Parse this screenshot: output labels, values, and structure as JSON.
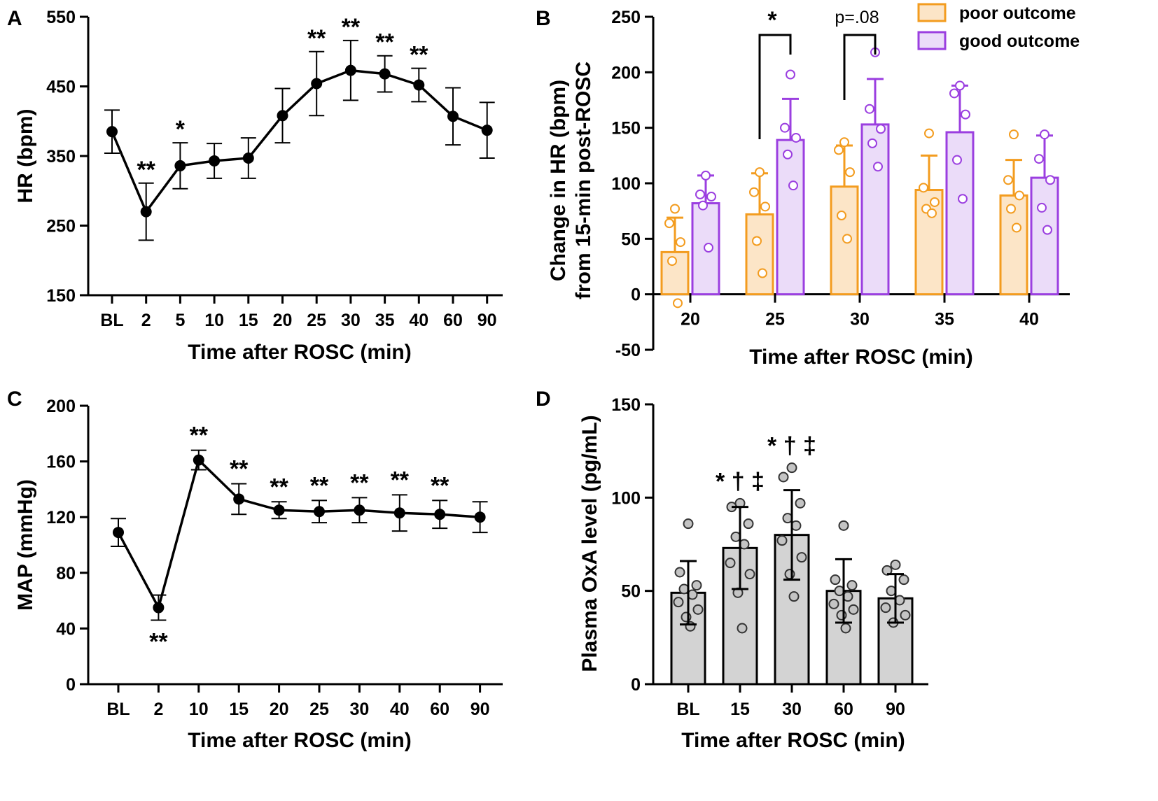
{
  "chart_data": [
    {
      "panel": "A",
      "type": "line",
      "xlabel": "Time after ROSC (min)",
      "ylabel": "HR (bpm)",
      "ylim": [
        150,
        550
      ],
      "yticks": [
        150,
        250,
        350,
        450,
        550
      ],
      "categories": [
        "BL",
        "2",
        "5",
        "10",
        "15",
        "20",
        "25",
        "30",
        "35",
        "40",
        "60",
        "90"
      ],
      "values": [
        385,
        270,
        336,
        343,
        347,
        408,
        454,
        473,
        468,
        452,
        407,
        387
      ],
      "errors": [
        31,
        41,
        33,
        25,
        29,
        39,
        46,
        43,
        26,
        24,
        41,
        40
      ],
      "annotations": [
        "",
        "**",
        "*",
        "",
        "",
        "",
        "**",
        "**",
        "**",
        "**",
        "",
        ""
      ],
      "annotation_position": [
        "above",
        "above",
        "above",
        "above",
        "above",
        "above",
        "above",
        "above",
        "above",
        "above",
        "above",
        "above"
      ]
    },
    {
      "panel": "B",
      "type": "bar",
      "xlabel": "Time after ROSC (min)",
      "ylabel_lines": [
        "Change in HR (bpm)",
        "from 15-min post-ROSC"
      ],
      "ylim": [
        -50,
        250
      ],
      "yticks": [
        -50,
        0,
        50,
        100,
        150,
        200,
        250
      ],
      "categories": [
        "20",
        "25",
        "30",
        "35",
        "40"
      ],
      "series": [
        {
          "name": "poor outcome",
          "color": "#F39C1F",
          "fill": "#FCE5C7",
          "values": [
            38,
            72,
            97,
            94,
            89
          ],
          "errors": [
            31,
            37,
            37,
            31,
            32
          ],
          "points": [
            [
              77,
              64,
              47,
              30,
              -8
            ],
            [
              110,
              92,
              79,
              48,
              19
            ],
            [
              137,
              130,
              110,
              71,
              50
            ],
            [
              145,
              96,
              83,
              77,
              73
            ],
            [
              144,
              103,
              89,
              77,
              60
            ]
          ]
        },
        {
          "name": "good outcome",
          "color": "#9B3FE0",
          "fill": "#EBDCF9",
          "values": [
            82,
            139,
            153,
            146,
            105
          ],
          "errors": [
            25,
            37,
            41,
            42,
            38
          ],
          "points": [
            [
              107,
              90,
              88,
              80,
              42
            ],
            [
              198,
              150,
              141,
              126,
              98
            ],
            [
              218,
              167,
              149,
              136,
              115
            ],
            [
              188,
              181,
              162,
              121,
              86
            ],
            [
              144,
              122,
              103,
              78,
              58
            ]
          ]
        }
      ],
      "comparisons": [
        {
          "category": "25",
          "label": "*"
        },
        {
          "category": "30",
          "label": "p=.08"
        }
      ]
    },
    {
      "panel": "C",
      "type": "line",
      "xlabel": "Time after ROSC (min)",
      "ylabel": "MAP (mmHg)",
      "ylim": [
        0,
        200
      ],
      "yticks": [
        0,
        40,
        80,
        120,
        160,
        200
      ],
      "categories": [
        "BL",
        "2",
        "10",
        "15",
        "20",
        "25",
        "30",
        "40",
        "60",
        "90"
      ],
      "values": [
        109,
        55,
        161,
        133,
        125,
        124,
        125,
        123,
        122,
        120
      ],
      "errors": [
        10,
        9,
        7,
        11,
        6,
        8,
        9,
        13,
        10,
        11
      ],
      "annotations": [
        "",
        "**",
        "**",
        "**",
        "**",
        "**",
        "**",
        "**",
        "**",
        ""
      ],
      "annotation_position": [
        "above",
        "below",
        "above",
        "above",
        "above",
        "above",
        "above",
        "above",
        "above",
        "above"
      ]
    },
    {
      "panel": "D",
      "type": "bar",
      "xlabel": "Time after ROSC (min)",
      "ylabel": "Plasma OxA level (pg/mL)",
      "ylim": [
        0,
        150
      ],
      "yticks": [
        0,
        50,
        100,
        150
      ],
      "categories": [
        "BL",
        "15",
        "30",
        "60",
        "90"
      ],
      "values": [
        49,
        73,
        80,
        50,
        46
      ],
      "errors": [
        17,
        22,
        24,
        17,
        13
      ],
      "points": [
        [
          86,
          60,
          53,
          51,
          48,
          44,
          40,
          36,
          31
        ],
        [
          97,
          95,
          86,
          79,
          75,
          65,
          59,
          49,
          30
        ],
        [
          116,
          111,
          97,
          89,
          85,
          77,
          68,
          59,
          47
        ],
        [
          85,
          56,
          53,
          50,
          47,
          43,
          40,
          37,
          30
        ],
        [
          64,
          61,
          56,
          50,
          45,
          41,
          37,
          33
        ]
      ],
      "annotations": [
        "",
        "* † ‡",
        "* † ‡",
        "",
        ""
      ]
    }
  ]
}
